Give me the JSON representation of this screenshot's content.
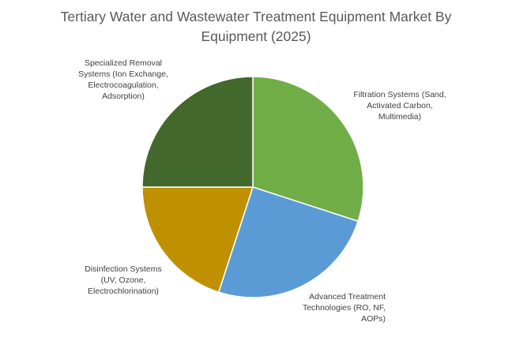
{
  "chart_data": {
    "type": "pie",
    "title_lines": [
      "Tertiary Water and Wastewater Treatment Equipment Market By",
      "Equipment (2025)"
    ],
    "slices": [
      {
        "label_lines": [
          "Filtration Systems (Sand,",
          "Activated Carbon,",
          "Multimedia)"
        ],
        "value": 30,
        "color": "#70ad47"
      },
      {
        "label_lines": [
          "Advanced Treatment",
          "Technologies (RO, NF,",
          "AOPs)"
        ],
        "value": 25,
        "color": "#5b9bd5"
      },
      {
        "label_lines": [
          "Disinfection Systems",
          "(UV, Ozone,",
          "Electrochlorination)"
        ],
        "value": 20,
        "color": "#bf9000"
      },
      {
        "label_lines": [
          "Specialized Removal",
          "Systems (Ion Exchange,",
          "Electrocoagulation,",
          "Adsorption)"
        ],
        "value": 25,
        "color": "#43682b"
      }
    ],
    "start_angle": "12 o'clock",
    "direction": "clockwise",
    "legend": "none"
  }
}
